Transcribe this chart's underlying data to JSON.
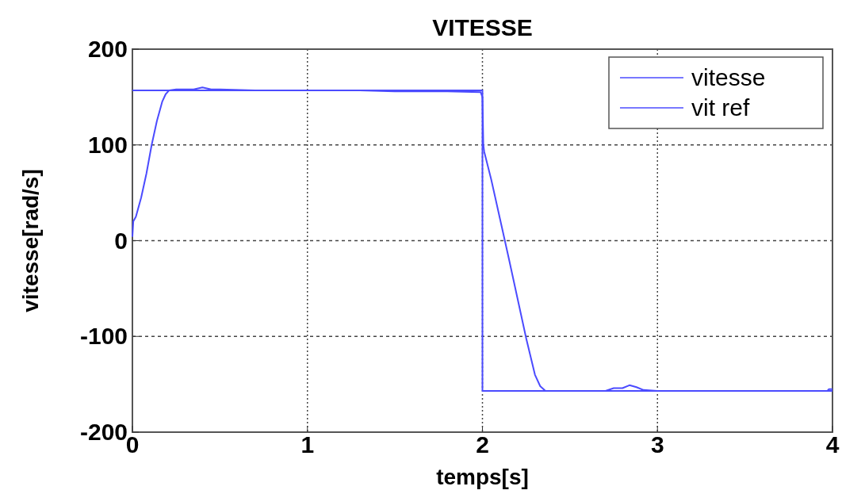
{
  "chart_data": {
    "type": "line",
    "title": "VITESSE",
    "xlabel": "temps[s]",
    "ylabel": "vitesse[rad/s]",
    "xlim": [
      0,
      4
    ],
    "ylim": [
      -200,
      200
    ],
    "xticks": [
      0,
      1,
      2,
      3,
      4
    ],
    "yticks": [
      -200,
      -100,
      0,
      100,
      200
    ],
    "grid": true,
    "legend": "top right",
    "line_style": "solid",
    "marker": "none",
    "series": [
      {
        "name": "vitesse",
        "color": "#4b4bff",
        "x": [
          0,
          0.005,
          0.02,
          0.05,
          0.08,
          0.11,
          0.14,
          0.17,
          0.19,
          0.21,
          0.25,
          0.35,
          0.4,
          0.45,
          0.5,
          0.7,
          1.0,
          1.3,
          1.5,
          1.6,
          1.8,
          1.99,
          2.0,
          2.005,
          2.01,
          2.05,
          2.1,
          2.15,
          2.2,
          2.25,
          2.3,
          2.33,
          2.36,
          2.5,
          2.7,
          2.75,
          2.8,
          2.84,
          2.88,
          2.92,
          3.0,
          3.5,
          3.97,
          3.98,
          4.0
        ],
        "values": [
          4,
          20,
          25,
          45,
          70,
          100,
          125,
          145,
          153,
          157,
          158,
          158,
          160,
          158,
          158,
          157,
          157,
          157,
          156,
          156,
          156,
          155,
          150,
          100,
          93,
          64,
          23,
          -18,
          -60,
          -102,
          -140,
          -152,
          -157,
          -157,
          -157,
          -154,
          -154,
          -151,
          -153,
          -156,
          -157,
          -157,
          -157,
          -155,
          -155
        ]
      },
      {
        "name": "vit ref",
        "color": "#4b4bff",
        "x": [
          0,
          2,
          2,
          4
        ],
        "values": [
          157,
          157,
          -157,
          -157
        ]
      }
    ]
  }
}
